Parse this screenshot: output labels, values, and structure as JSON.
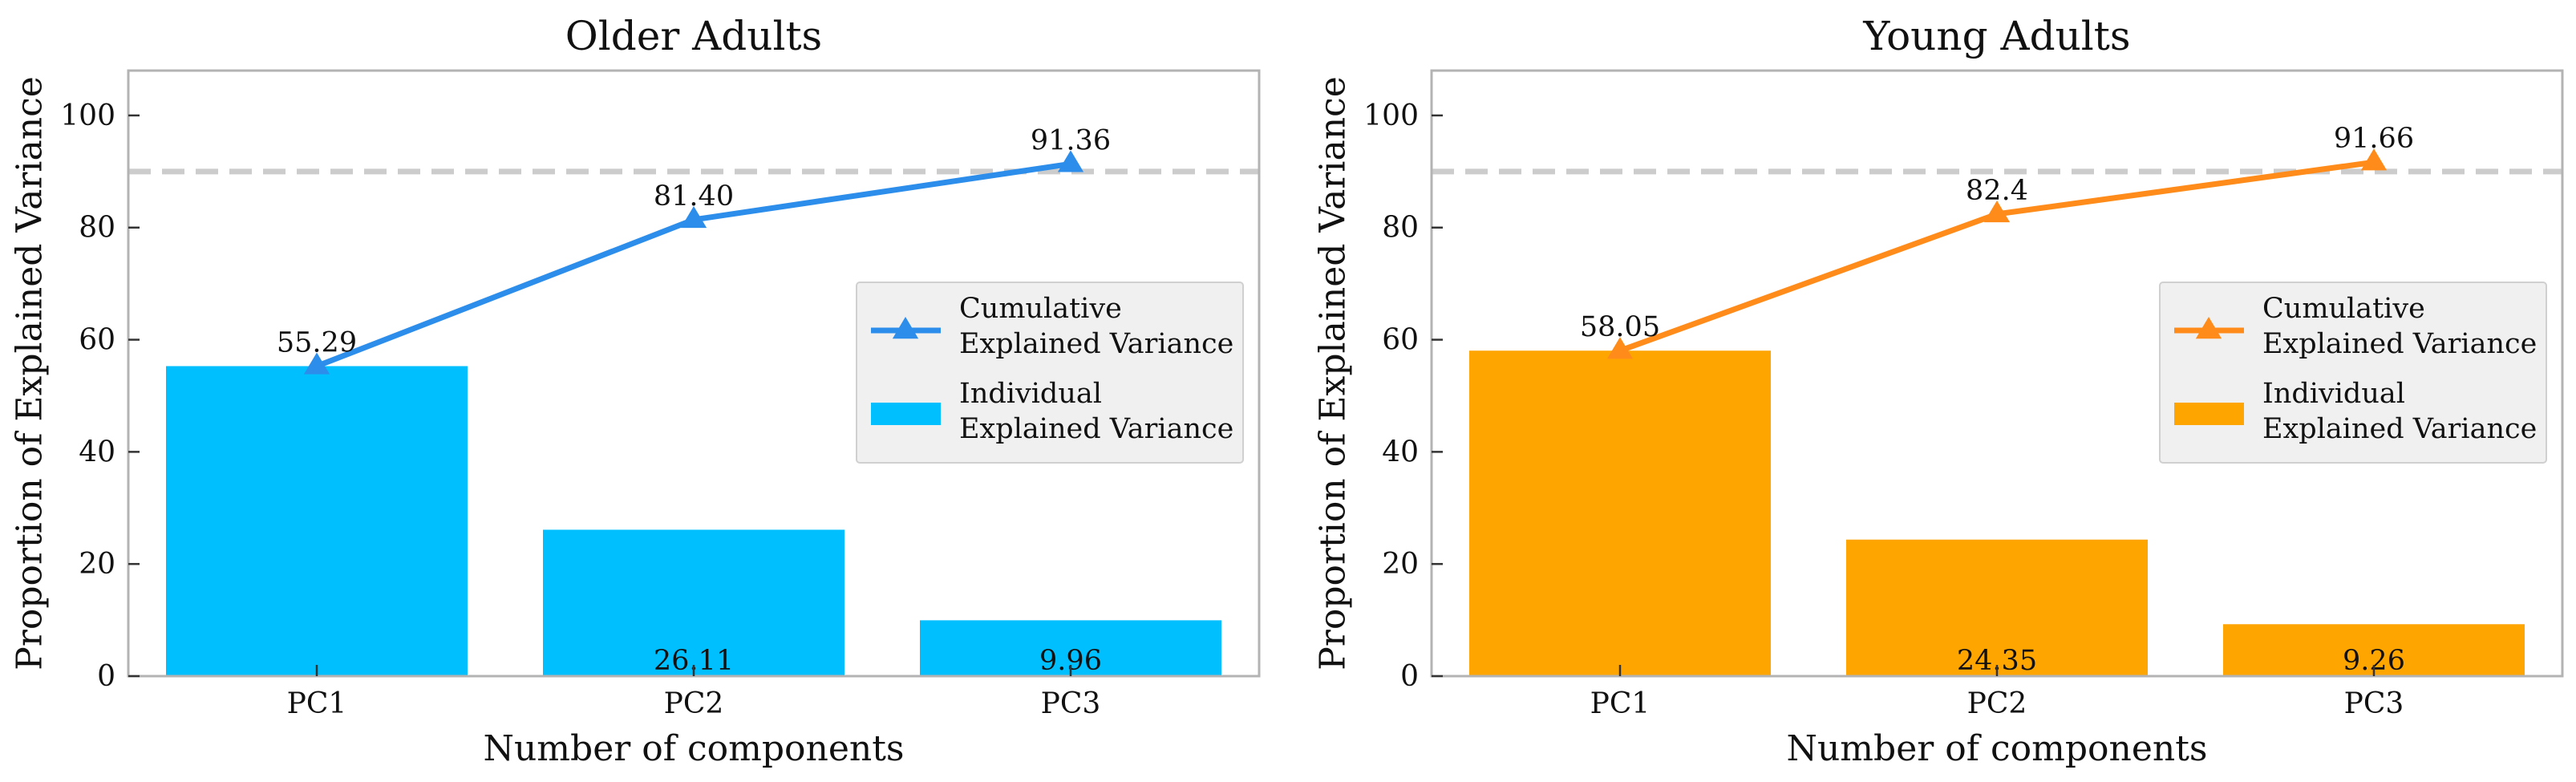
{
  "chart_data": [
    {
      "type": "bar",
      "title": "Older Adults",
      "xlabel": "Number of components",
      "ylabel": "Proportion of Explained Variance",
      "categories": [
        "PC1",
        "PC2",
        "PC3"
      ],
      "ylim": [
        0,
        108
      ],
      "yticks": [
        "0",
        "20",
        "40",
        "60",
        "80",
        "100"
      ],
      "threshold": 90,
      "bar_color": "#00BFFF",
      "line_color": "#2C8DEB",
      "series": [
        {
          "name": "Cumulative\nExplained Variance",
          "kind": "line",
          "values": [
            55.29,
            81.4,
            91.36
          ],
          "labels": [
            "55.29",
            "81.40",
            "91.36"
          ]
        },
        {
          "name": "Individual\nExplained Variance",
          "kind": "bar",
          "values": [
            55.29,
            26.11,
            9.96
          ],
          "labels": [
            "",
            "26.11",
            "9.96"
          ]
        }
      ],
      "legend_position": "center-right"
    },
    {
      "type": "bar",
      "title": "Young Adults",
      "xlabel": "Number of components",
      "ylabel": "Proportion of Explained Variance",
      "categories": [
        "PC1",
        "PC2",
        "PC3"
      ],
      "ylim": [
        0,
        108
      ],
      "yticks": [
        "0",
        "20",
        "40",
        "60",
        "80",
        "100"
      ],
      "threshold": 90,
      "bar_color": "#FFA500",
      "line_color": "#FF8C1A",
      "series": [
        {
          "name": "Cumulative\nExplained Variance",
          "kind": "line",
          "values": [
            58.05,
            82.4,
            91.66
          ],
          "labels": [
            "58.05",
            "82.4",
            "91.66"
          ]
        },
        {
          "name": "Individual\nExplained Variance",
          "kind": "bar",
          "values": [
            58.05,
            24.35,
            9.26
          ],
          "labels": [
            "",
            "24.35",
            "9.26"
          ]
        }
      ],
      "legend_position": "center-right"
    }
  ]
}
